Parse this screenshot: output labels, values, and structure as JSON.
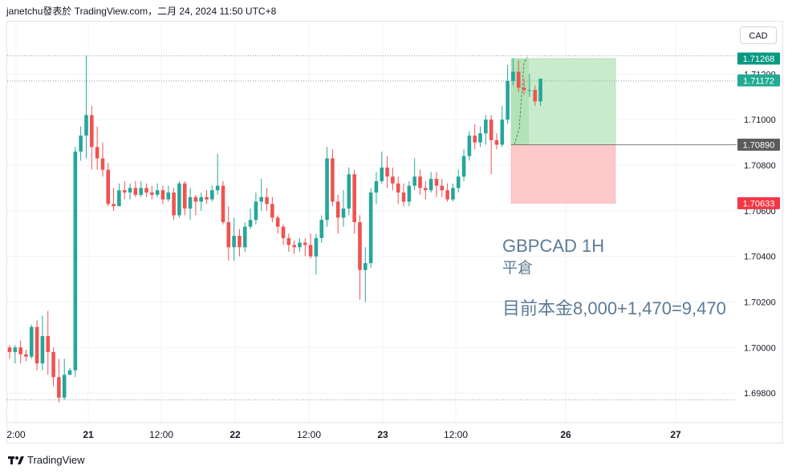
{
  "header": {
    "text": "janetchu發表於 TradingView.com，二月 24, 2024 11:50 UTC+8"
  },
  "currency_button": "CAD",
  "footer": {
    "logo_text": "TradingView"
  },
  "annotation": {
    "title": "GBPCAD 1H",
    "subtitle": "平倉",
    "capital": "目前本金8,000+1,470=9,470"
  },
  "colors": {
    "up": "#26a69a",
    "down": "#ef5350",
    "profit_zone": "#c8eccb",
    "loss_zone": "#ffc9c9"
  },
  "chart_data": {
    "type": "candlestick",
    "symbol": "GBPCAD",
    "timeframe": "1H",
    "y_ticks": [
      "1.71200",
      "1.71000",
      "1.70800",
      "1.70600",
      "1.70400",
      "1.70200",
      "1.70000",
      "1.69800"
    ],
    "x_ticks": [
      "2:00",
      "21",
      "12:00",
      "22",
      "12:00",
      "23",
      "12:00",
      "26",
      "27"
    ],
    "ylim": [
      1.6967,
      1.7143
    ],
    "price_labels": [
      {
        "value": "1.71268",
        "price": 1.71268,
        "color": "#089981"
      },
      {
        "value": "1.71172",
        "price": 1.71172,
        "color": "#22ab94"
      },
      {
        "value": "1.70890",
        "price": 1.7089,
        "color": "#5b5b5b"
      },
      {
        "value": "1.70633",
        "price": 1.70633,
        "color": "#f23645"
      }
    ],
    "position": {
      "entry": 1.7089,
      "target": 1.71268,
      "stop": 1.70633
    },
    "candles": [
      [
        1.7,
        1.6998,
        1.7001,
        1.6995
      ],
      [
        1.6998,
        1.7,
        1.7001,
        1.6993
      ],
      [
        1.7,
        1.6997,
        1.7003,
        1.6993
      ],
      [
        1.6997,
        1.6996,
        1.6999,
        1.6994
      ],
      [
        1.6996,
        1.7009,
        1.701,
        1.6995
      ],
      [
        1.7009,
        1.6993,
        1.7012,
        1.699
      ],
      [
        1.6993,
        1.7005,
        1.7014,
        1.699
      ],
      [
        1.7005,
        1.6998,
        1.7016,
        1.6988
      ],
      [
        1.6998,
        1.6987,
        1.7,
        1.6983
      ],
      [
        1.6987,
        1.6978,
        1.6995,
        1.6976
      ],
      [
        1.6978,
        1.6988,
        1.6995,
        1.6977
      ],
      [
        1.6988,
        1.699,
        1.6991,
        1.6988
      ],
      [
        1.699,
        1.7086,
        1.7088,
        1.6987
      ],
      [
        1.7086,
        1.7093,
        1.7097,
        1.7082
      ],
      [
        1.7093,
        1.7102,
        1.7128,
        1.7083
      ],
      [
        1.7102,
        1.7088,
        1.7106,
        1.7078
      ],
      [
        1.7088,
        1.7083,
        1.7097,
        1.7078
      ],
      [
        1.7083,
        1.7078,
        1.709,
        1.7075
      ],
      [
        1.7078,
        1.7063,
        1.7081,
        1.7062
      ],
      [
        1.7063,
        1.7062,
        1.707,
        1.706
      ],
      [
        1.7062,
        1.7069,
        1.7072,
        1.7063
      ],
      [
        1.7069,
        1.7068,
        1.7073,
        1.7065
      ],
      [
        1.7068,
        1.707,
        1.7072,
        1.7065
      ],
      [
        1.707,
        1.7067,
        1.7073,
        1.7066
      ],
      [
        1.7067,
        1.707,
        1.7073,
        1.7066
      ],
      [
        1.707,
        1.7068,
        1.7072,
        1.7066
      ],
      [
        1.7068,
        1.7067,
        1.7071,
        1.7065
      ],
      [
        1.7067,
        1.7069,
        1.7072,
        1.7066
      ],
      [
        1.7069,
        1.7065,
        1.7071,
        1.7063
      ],
      [
        1.7065,
        1.7068,
        1.7071,
        1.7064
      ],
      [
        1.7068,
        1.7058,
        1.707,
        1.7056
      ],
      [
        1.7058,
        1.7072,
        1.7073,
        1.7057
      ],
      [
        1.7072,
        1.7061,
        1.7073,
        1.7058
      ],
      [
        1.7061,
        1.7066,
        1.707,
        1.7056
      ],
      [
        1.7066,
        1.7064,
        1.7067,
        1.7058
      ],
      [
        1.7064,
        1.7066,
        1.7068,
        1.706
      ],
      [
        1.7066,
        1.7065,
        1.7069,
        1.7063
      ],
      [
        1.7065,
        1.7069,
        1.7071,
        1.7064
      ],
      [
        1.7069,
        1.7071,
        1.7085,
        1.7067
      ],
      [
        1.7071,
        1.7055,
        1.7073,
        1.7054
      ],
      [
        1.7055,
        1.7044,
        1.7062,
        1.7038
      ],
      [
        1.7044,
        1.7049,
        1.7057,
        1.7038
      ],
      [
        1.7049,
        1.7044,
        1.7052,
        1.704
      ],
      [
        1.7044,
        1.7053,
        1.7055,
        1.7042
      ],
      [
        1.7053,
        1.7056,
        1.7061,
        1.7052
      ],
      [
        1.7056,
        1.7064,
        1.7068,
        1.7054
      ],
      [
        1.7064,
        1.7066,
        1.7074,
        1.706
      ],
      [
        1.7066,
        1.7063,
        1.707,
        1.706
      ],
      [
        1.7063,
        1.7057,
        1.7066,
        1.7055
      ],
      [
        1.7057,
        1.7053,
        1.7058,
        1.705
      ],
      [
        1.7053,
        1.7048,
        1.7054,
        1.7045
      ],
      [
        1.7048,
        1.7045,
        1.705,
        1.7042
      ],
      [
        1.7045,
        1.7044,
        1.7047,
        1.7041
      ],
      [
        1.7044,
        1.7046,
        1.7048,
        1.7042
      ],
      [
        1.7046,
        1.7045,
        1.7048,
        1.704
      ],
      [
        1.7045,
        1.704,
        1.705,
        1.7039
      ],
      [
        1.704,
        1.7048,
        1.705,
        1.7032
      ],
      [
        1.7048,
        1.7056,
        1.7058,
        1.7046
      ],
      [
        1.7056,
        1.7083,
        1.7088,
        1.7053
      ],
      [
        1.7083,
        1.7064,
        1.7087,
        1.7062
      ],
      [
        1.7064,
        1.7057,
        1.7067,
        1.705
      ],
      [
        1.7057,
        1.7061,
        1.7069,
        1.7053
      ],
      [
        1.7061,
        1.7076,
        1.7079,
        1.7058
      ],
      [
        1.7076,
        1.7055,
        1.7078,
        1.705
      ],
      [
        1.7055,
        1.7034,
        1.7058,
        1.7021
      ],
      [
        1.7034,
        1.7037,
        1.7044,
        1.702
      ],
      [
        1.7037,
        1.7068,
        1.707,
        1.7035
      ],
      [
        1.7068,
        1.7073,
        1.7077,
        1.7063
      ],
      [
        1.7073,
        1.7079,
        1.7086,
        1.7072
      ],
      [
        1.7079,
        1.7075,
        1.7084,
        1.707
      ],
      [
        1.7075,
        1.7072,
        1.7079,
        1.7069
      ],
      [
        1.7072,
        1.7068,
        1.7075,
        1.7063
      ],
      [
        1.7068,
        1.7064,
        1.7072,
        1.7062
      ],
      [
        1.7064,
        1.7071,
        1.7073,
        1.7062
      ],
      [
        1.7071,
        1.7075,
        1.7083,
        1.7069
      ],
      [
        1.7075,
        1.707,
        1.7078,
        1.7067
      ],
      [
        1.707,
        1.7069,
        1.7073,
        1.7065
      ],
      [
        1.7069,
        1.7074,
        1.7077,
        1.7068
      ],
      [
        1.7074,
        1.7071,
        1.7077,
        1.7066
      ],
      [
        1.7071,
        1.7069,
        1.7074,
        1.7066
      ],
      [
        1.7069,
        1.7065,
        1.7072,
        1.7064
      ],
      [
        1.7065,
        1.707,
        1.7072,
        1.7064
      ],
      [
        1.707,
        1.7075,
        1.7078,
        1.7068
      ],
      [
        1.7075,
        1.7084,
        1.7087,
        1.7073
      ],
      [
        1.7084,
        1.7093,
        1.7095,
        1.7082
      ],
      [
        1.7093,
        1.709,
        1.7098,
        1.7087
      ],
      [
        1.709,
        1.7094,
        1.7097,
        1.7088
      ],
      [
        1.7094,
        1.71,
        1.7102,
        1.7089
      ],
      [
        1.71,
        1.7091,
        1.7102,
        1.7076
      ],
      [
        1.7091,
        1.7089,
        1.7094,
        1.7087
      ],
      [
        1.7089,
        1.71,
        1.7106,
        1.7088
      ],
      [
        1.71,
        1.7117,
        1.7124,
        1.7098
      ],
      [
        1.7117,
        1.7121,
        1.7127,
        1.7115
      ],
      [
        1.7121,
        1.7114,
        1.7126,
        1.7112
      ],
      [
        1.7114,
        1.7113,
        1.7118,
        1.7111
      ],
      [
        1.7113,
        1.7113,
        1.712,
        1.711
      ],
      [
        1.7113,
        1.7108,
        1.7115,
        1.7106
      ],
      [
        1.7108,
        1.7118,
        1.7118,
        1.7106
      ]
    ]
  }
}
